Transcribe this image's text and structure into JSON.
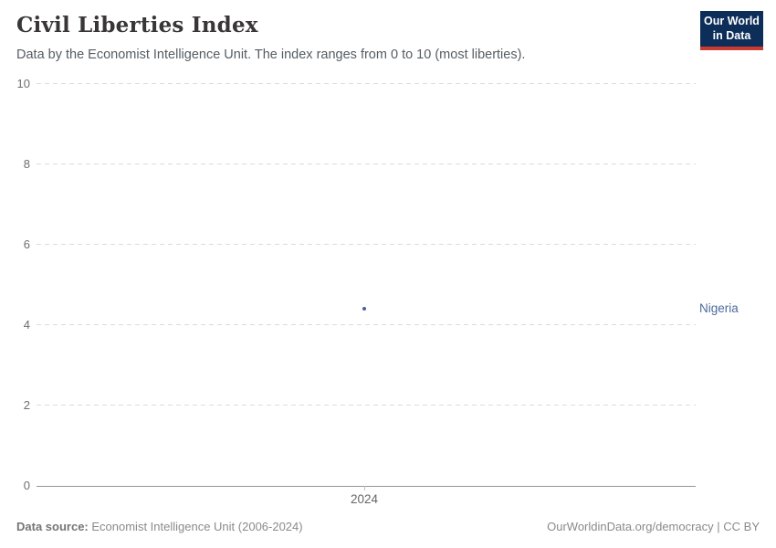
{
  "header": {
    "title": "Civil Liberties Index",
    "subtitle": "Data by the Economist Intelligence Unit. The index ranges from 0 to 10 (most liberties).",
    "logo": {
      "line1": "Our World",
      "line2": "in Data"
    }
  },
  "chart_data": {
    "type": "scatter",
    "title": "Civil Liberties Index",
    "xlabel": "",
    "ylabel": "",
    "x": [
      2024
    ],
    "xticks": [
      "2024"
    ],
    "ylim": [
      0,
      10
    ],
    "yticks": [
      0,
      2,
      4,
      6,
      8,
      10
    ],
    "grid": "horizontal dashed",
    "legend_position": "right-entity-label",
    "series": [
      {
        "name": "Nigeria",
        "values": [
          4.41
        ],
        "color": "#4c6a9c",
        "point_color": "#46619e"
      }
    ]
  },
  "footer": {
    "source_label": "Data source:",
    "source_value": " Economist Intelligence Unit (2006-2024)",
    "rights": "OurWorldinData.org/democracy | CC BY"
  },
  "colors": {
    "title": "#383636",
    "subtitle": "#555d63",
    "gridline": "#dcdcdc",
    "axis_line": "#949494",
    "tick_label": "#6e6e6e",
    "logo_bg": "#0e2e5a",
    "logo_stripe": "#cb3a31",
    "footer_text": "#8a8a8a"
  }
}
